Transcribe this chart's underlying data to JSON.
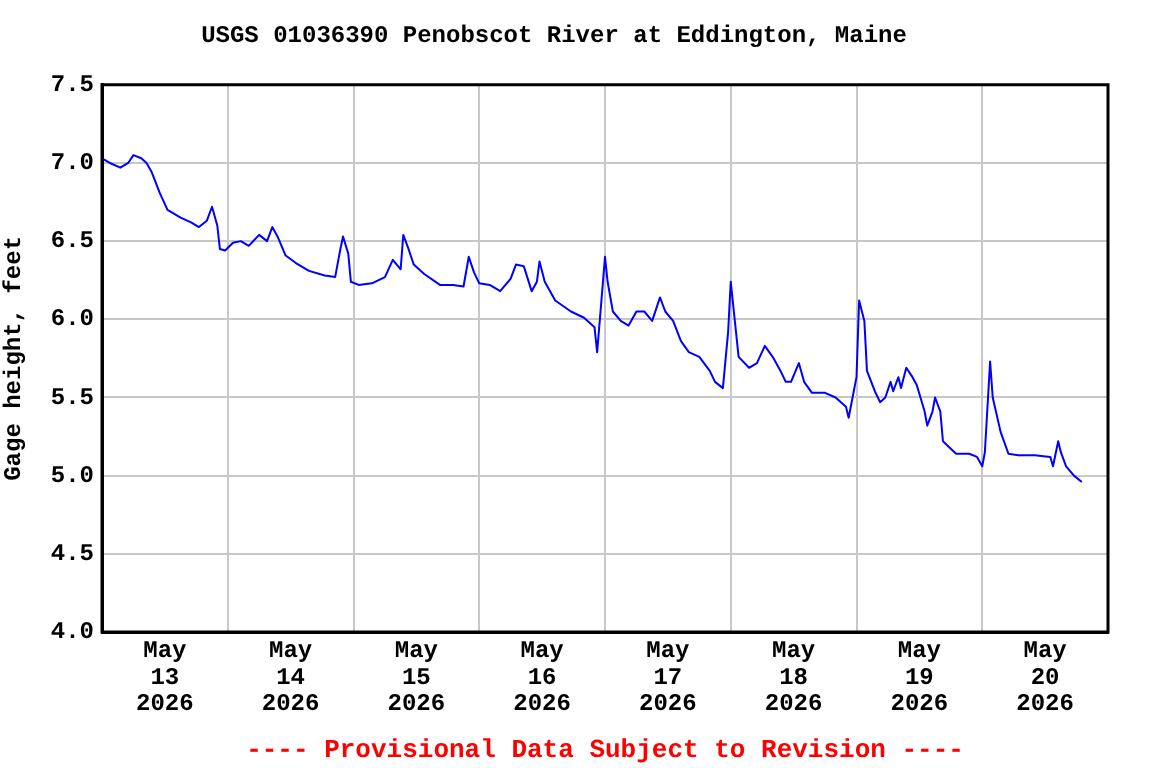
{
  "chart_data": {
    "type": "line",
    "title": "USGS 01036390 Penobscot River at Eddington, Maine",
    "ylabel": "Gage height, feet",
    "annotations": [
      "---- Provisional Data Subject to Revision ----"
    ],
    "x": [
      "2026-05-13T00:00",
      "2026-05-13T01:30",
      "2026-05-13T03:30",
      "2026-05-13T05:00",
      "2026-05-13T06:00",
      "2026-05-13T07:30",
      "2026-05-13T08:30",
      "2026-05-13T09:30",
      "2026-05-13T11:00",
      "2026-05-13T12:30",
      "2026-05-13T15:00",
      "2026-05-13T17:00",
      "2026-05-13T18:30",
      "2026-05-13T20:00",
      "2026-05-13T21:00",
      "2026-05-13T22:00",
      "2026-05-13T22:30",
      "2026-05-13T23:30",
      "2026-05-14T01:00",
      "2026-05-14T02:30",
      "2026-05-14T04:00",
      "2026-05-14T06:00",
      "2026-05-14T07:30",
      "2026-05-14T08:30",
      "2026-05-14T09:30",
      "2026-05-14T11:00",
      "2026-05-14T13:00",
      "2026-05-14T15:30",
      "2026-05-14T18:30",
      "2026-05-14T20:30",
      "2026-05-14T21:30",
      "2026-05-14T22:00",
      "2026-05-14T23:00",
      "2026-05-14T23:30",
      "2026-05-15T01:00",
      "2026-05-15T03:30",
      "2026-05-15T06:00",
      "2026-05-15T07:30",
      "2026-05-15T09:00",
      "2026-05-15T09:30",
      "2026-05-15T10:30",
      "2026-05-15T11:30",
      "2026-05-15T13:30",
      "2026-05-15T16:30",
      "2026-05-15T19:00",
      "2026-05-15T21:00",
      "2026-05-15T22:00",
      "2026-05-15T23:00",
      "2026-05-16T00:00",
      "2026-05-16T02:00",
      "2026-05-16T04:00",
      "2026-05-16T06:00",
      "2026-05-16T07:00",
      "2026-05-16T08:30",
      "2026-05-16T10:00",
      "2026-05-16T11:00",
      "2026-05-16T11:30",
      "2026-05-16T12:30",
      "2026-05-16T14:30",
      "2026-05-16T17:30",
      "2026-05-16T20:00",
      "2026-05-16T22:00",
      "2026-05-16T22:30",
      "2026-05-16T23:00",
      "2026-05-17T00:00",
      "2026-05-17T00:30",
      "2026-05-17T01:30",
      "2026-05-17T03:00",
      "2026-05-17T04:30",
      "2026-05-17T06:00",
      "2026-05-17T07:30",
      "2026-05-17T09:00",
      "2026-05-17T10:30",
      "2026-05-17T11:30",
      "2026-05-17T13:00",
      "2026-05-17T14:30",
      "2026-05-17T16:00",
      "2026-05-17T18:00",
      "2026-05-17T20:00",
      "2026-05-17T21:00",
      "2026-05-17T22:30",
      "2026-05-17T23:30",
      "2026-05-18T00:00",
      "2026-05-18T01:00",
      "2026-05-18T01:30",
      "2026-05-18T03:30",
      "2026-05-18T05:00",
      "2026-05-18T06:30",
      "2026-05-18T08:00",
      "2026-05-18T09:30",
      "2026-05-18T10:30",
      "2026-05-18T11:30",
      "2026-05-18T13:00",
      "2026-05-18T14:00",
      "2026-05-18T15:30",
      "2026-05-18T18:00",
      "2026-05-18T20:00",
      "2026-05-18T22:00",
      "2026-05-18T22:30",
      "2026-05-19T00:00",
      "2026-05-19T00:30",
      "2026-05-19T01:30",
      "2026-05-19T02:00",
      "2026-05-19T03:30",
      "2026-05-19T04:30",
      "2026-05-19T05:30",
      "2026-05-19T06:30",
      "2026-05-19T07:00",
      "2026-05-19T08:00",
      "2026-05-19T08:30",
      "2026-05-19T09:30",
      "2026-05-19T10:30",
      "2026-05-19T11:30",
      "2026-05-19T13:00",
      "2026-05-19T13:30",
      "2026-05-19T14:30",
      "2026-05-19T15:00",
      "2026-05-19T16:00",
      "2026-05-19T16:30",
      "2026-05-19T19:00",
      "2026-05-19T21:30",
      "2026-05-19T23:00",
      "2026-05-20T00:00",
      "2026-05-20T00:30",
      "2026-05-20T01:30",
      "2026-05-20T02:00",
      "2026-05-20T03:30",
      "2026-05-20T05:00",
      "2026-05-20T07:00",
      "2026-05-20T10:00",
      "2026-05-20T13:00",
      "2026-05-20T13:30",
      "2026-05-20T14:30",
      "2026-05-20T15:00",
      "2026-05-20T16:00",
      "2026-05-20T17:30",
      "2026-05-20T19:00"
    ],
    "series": [
      {
        "color": "#0000ff",
        "values": [
          7.03,
          7.0,
          6.97,
          7.0,
          7.05,
          7.03,
          7.0,
          6.94,
          6.81,
          6.7,
          6.65,
          6.62,
          6.59,
          6.63,
          6.72,
          6.6,
          6.45,
          6.44,
          6.49,
          6.5,
          6.47,
          6.54,
          6.5,
          6.59,
          6.53,
          6.41,
          6.36,
          6.31,
          6.28,
          6.27,
          6.45,
          6.53,
          6.42,
          6.24,
          6.22,
          6.23,
          6.27,
          6.38,
          6.32,
          6.54,
          6.45,
          6.35,
          6.29,
          6.22,
          6.22,
          6.21,
          6.4,
          6.3,
          6.23,
          6.22,
          6.18,
          6.26,
          6.35,
          6.34,
          6.18,
          6.24,
          6.37,
          6.24,
          6.12,
          6.05,
          6.01,
          5.95,
          5.79,
          5.99,
          6.4,
          6.24,
          6.05,
          5.99,
          5.96,
          6.05,
          6.05,
          5.99,
          6.14,
          6.05,
          5.99,
          5.86,
          5.79,
          5.76,
          5.67,
          5.6,
          5.56,
          5.92,
          6.24,
          5.92,
          5.76,
          5.69,
          5.72,
          5.83,
          5.76,
          5.67,
          5.6,
          5.6,
          5.72,
          5.6,
          5.53,
          5.53,
          5.5,
          5.44,
          5.37,
          5.63,
          6.12,
          5.99,
          5.67,
          5.54,
          5.47,
          5.5,
          5.6,
          5.54,
          5.63,
          5.56,
          5.69,
          5.64,
          5.58,
          5.41,
          5.32,
          5.41,
          5.5,
          5.41,
          5.22,
          5.14,
          5.14,
          5.12,
          5.06,
          5.15,
          5.73,
          5.5,
          5.28,
          5.14,
          5.13,
          5.13,
          5.12,
          5.06,
          5.22,
          5.15,
          5.06,
          5.0,
          4.96
        ]
      }
    ],
    "xlim": [
      "2026-05-13T00:00",
      "2026-05-21T00:00"
    ],
    "xticks": [
      {
        "value": "2026-05-13T00:00",
        "label": null
      },
      {
        "value": "2026-05-13T12:00",
        "label": "May 13 2026"
      },
      {
        "value": "2026-05-14T00:00",
        "label": null
      },
      {
        "value": "2026-05-14T12:00",
        "label": "May 14 2026"
      },
      {
        "value": "2026-05-15T00:00",
        "label": null
      },
      {
        "value": "2026-05-15T12:00",
        "label": "May 15 2026"
      },
      {
        "value": "2026-05-16T00:00",
        "label": null
      },
      {
        "value": "2026-05-16T12:00",
        "label": "May 16 2026"
      },
      {
        "value": "2026-05-17T00:00",
        "label": null
      },
      {
        "value": "2026-05-17T12:00",
        "label": "May 17 2026"
      },
      {
        "value": "2026-05-18T00:00",
        "label": null
      },
      {
        "value": "2026-05-18T12:00",
        "label": "May 18 2026"
      },
      {
        "value": "2026-05-19T00:00",
        "label": null
      },
      {
        "value": "2026-05-19T12:00",
        "label": "May 19 2026"
      },
      {
        "value": "2026-05-20T00:00",
        "label": null
      },
      {
        "value": "2026-05-20T12:00",
        "label": "May 20 2026"
      },
      {
        "value": "2026-05-21T00:00",
        "label": null
      }
    ],
    "ylim": [
      4.0,
      7.5
    ],
    "yticks": [
      {
        "value": 4,
        "label": "4.0"
      },
      4.5,
      {
        "value": 5,
        "label": "5.0"
      },
      5.5,
      {
        "value": 6,
        "label": "6.0"
      },
      6.5,
      {
        "value": 7,
        "label": "7.0"
      },
      7.5
    ],
    "grid": true,
    "legend": false,
    "marker": "none",
    "line_style": "solid"
  }
}
